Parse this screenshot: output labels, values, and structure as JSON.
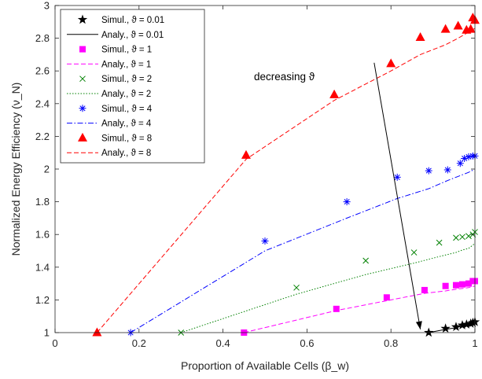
{
  "chart_data": {
    "type": "line",
    "title": "",
    "xlabel": "Proportion of Available Cells (β_w)",
    "ylabel": "Normalized Energy Efficiency (ν_N)",
    "xlim": [
      0,
      1
    ],
    "ylim": [
      1,
      3
    ],
    "xticks": [
      0,
      0.2,
      0.4,
      0.6,
      0.8,
      1
    ],
    "xtick_labels": [
      "0",
      "0.2",
      "0.4",
      "0.6",
      "0.8",
      "1"
    ],
    "yticks": [
      1,
      1.2,
      1.4,
      1.6,
      1.8,
      2,
      2.2,
      2.4,
      2.6,
      2.8,
      3
    ],
    "ytick_labels": [
      "1",
      "1.2",
      "1.4",
      "1.6",
      "1.8",
      "2",
      "2.2",
      "2.4",
      "2.6",
      "2.8",
      "3"
    ],
    "grid": false,
    "legend_position": "top-left",
    "annotation": {
      "text": "decreasing ϑ",
      "arrow_from": [
        0.76,
        2.65
      ],
      "arrow_to": [
        0.87,
        1.02
      ]
    },
    "series": [
      {
        "name": "Simul., ϑ = 0.01",
        "kind": "marker",
        "marker": "star",
        "color": "#000000",
        "x": [
          0.89,
          0.93,
          0.955,
          0.97,
          0.98,
          0.99,
          0.995,
          1.0
        ],
        "y": [
          1.0,
          1.025,
          1.035,
          1.045,
          1.05,
          1.055,
          1.06,
          1.065
        ]
      },
      {
        "name": "Analy., ϑ = 0.01",
        "kind": "line",
        "style": "solid",
        "color": "#000000",
        "x": [
          0.89,
          0.93,
          0.955,
          0.97,
          0.98,
          0.99,
          1.0
        ],
        "y": [
          1.0,
          1.02,
          1.03,
          1.04,
          1.045,
          1.05,
          1.055
        ]
      },
      {
        "name": "Simul., ϑ = 1",
        "kind": "marker",
        "marker": "square",
        "color": "#ff00ff",
        "x": [
          0.45,
          0.67,
          0.79,
          0.88,
          0.93,
          0.955,
          0.97,
          0.985,
          0.995,
          1.0
        ],
        "y": [
          1.0,
          1.145,
          1.215,
          1.26,
          1.285,
          1.29,
          1.295,
          1.3,
          1.315,
          1.315
        ]
      },
      {
        "name": "Analy., ϑ = 1",
        "kind": "line",
        "style": "dashed",
        "color": "#ff00ff",
        "x": [
          0.45,
          0.67,
          0.79,
          0.88,
          0.93,
          0.955,
          0.97,
          0.985,
          1.0
        ],
        "y": [
          1.0,
          1.135,
          1.195,
          1.24,
          1.255,
          1.265,
          1.27,
          1.275,
          1.285
        ]
      },
      {
        "name": "Simul., ϑ = 2",
        "kind": "marker",
        "marker": "x",
        "color": "#008000",
        "x": [
          0.3,
          0.575,
          0.74,
          0.855,
          0.915,
          0.955,
          0.97,
          0.985,
          0.995,
          1.0
        ],
        "y": [
          1.0,
          1.275,
          1.44,
          1.49,
          1.55,
          1.58,
          1.585,
          1.59,
          1.6,
          1.615
        ]
      },
      {
        "name": "Analy., ϑ = 2",
        "kind": "line",
        "style": "dotted",
        "color": "#008000",
        "x": [
          0.3,
          0.575,
          0.74,
          0.855,
          0.915,
          0.955,
          0.97,
          0.985,
          1.0
        ],
        "y": [
          1.0,
          1.235,
          1.355,
          1.425,
          1.465,
          1.49,
          1.505,
          1.515,
          1.545
        ]
      },
      {
        "name": "Simul., ϑ = 4",
        "kind": "marker",
        "marker": "asterisk",
        "color": "#0000ff",
        "x": [
          0.18,
          0.5,
          0.695,
          0.815,
          0.89,
          0.935,
          0.965,
          0.975,
          0.985,
          0.995,
          1.0
        ],
        "y": [
          1.0,
          1.56,
          1.8,
          1.95,
          1.99,
          1.995,
          2.035,
          2.065,
          2.075,
          2.08,
          2.08
        ]
      },
      {
        "name": "Analy., ϑ = 4",
        "kind": "line",
        "style": "dashdot",
        "color": "#0000ff",
        "x": [
          0.18,
          0.5,
          0.695,
          0.815,
          0.89,
          0.935,
          0.965,
          0.985,
          1.0
        ],
        "y": [
          1.0,
          1.5,
          1.7,
          1.82,
          1.88,
          1.93,
          1.96,
          1.98,
          2.0
        ]
      },
      {
        "name": "Simul., ϑ = 8",
        "kind": "marker",
        "marker": "triangle",
        "color": "#ff0000",
        "x": [
          0.1,
          0.455,
          0.665,
          0.8,
          0.87,
          0.93,
          0.96,
          0.98,
          0.99,
          0.995,
          1.0
        ],
        "y": [
          1.0,
          2.085,
          2.455,
          2.645,
          2.805,
          2.855,
          2.875,
          2.85,
          2.855,
          2.925,
          2.91
        ]
      },
      {
        "name": "Analy., ϑ = 8",
        "kind": "line",
        "style": "dashed",
        "color": "#ff0000",
        "x": [
          0.1,
          0.455,
          0.665,
          0.8,
          0.87,
          0.93,
          0.96,
          0.98,
          1.0
        ],
        "y": [
          1.0,
          2.06,
          2.42,
          2.6,
          2.7,
          2.76,
          2.8,
          2.83,
          2.86
        ]
      }
    ]
  }
}
